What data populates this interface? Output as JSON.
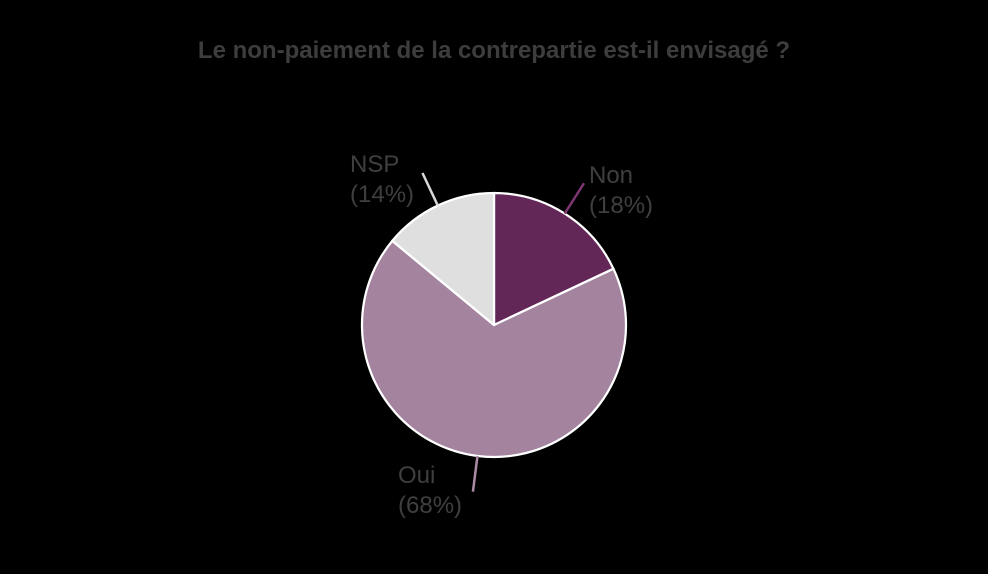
{
  "chart_data": {
    "type": "pie",
    "title": "Le non-paiement de la contrepartie est-il envisagé ?",
    "unit": "percent",
    "start_angle_deg": 0,
    "direction": "clockwise",
    "legend_position": "none",
    "labels_outside": true,
    "border_color": "#ffffff",
    "slices": [
      {
        "label": "Non",
        "value": 18,
        "pct_label": "(18%)",
        "color": "#632757",
        "leader_color": "#7b3570"
      },
      {
        "label": "Oui",
        "value": 68,
        "pct_label": "(68%)",
        "color": "#a3839e",
        "leader_color": "#aa8ba5"
      },
      {
        "label": "NSP",
        "value": 14,
        "pct_label": "(14%)",
        "color": "#e0dfe0",
        "leader_color": "#d9d7d9"
      }
    ]
  },
  "colors": {
    "background": "#000000",
    "title_text": "#3d3d3d",
    "label_text": "#3f3f3f"
  }
}
